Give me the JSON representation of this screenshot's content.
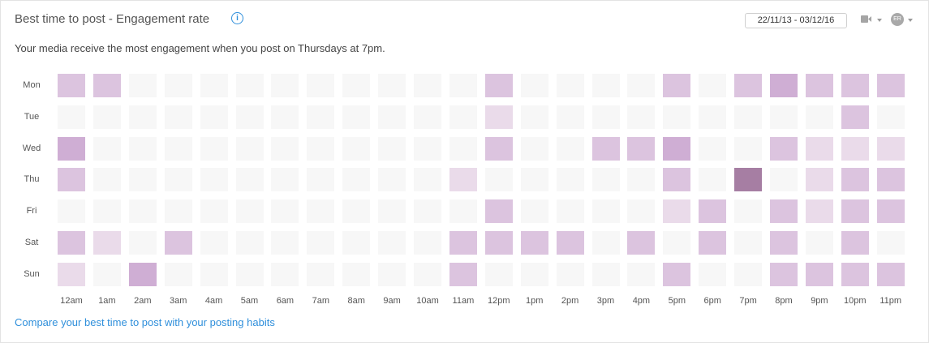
{
  "header": {
    "title": "Best time to post - Engagement rate",
    "info_icon": "info-icon",
    "date_range": "22/11/13 - 03/12/16",
    "avatar_initials": "ER"
  },
  "subtitle": "Your media receive the most engagement when you post on Thursdays at 7pm.",
  "footer_link": "Compare your best time to post with your posting habits",
  "colors": {
    "empty": "#f7f7f7",
    "accent": "#2f8fdb",
    "scale": [
      "#f7f7f7",
      "#eadbea",
      "#dcc4df",
      "#cfaed4",
      "#a67ea3"
    ]
  },
  "heatmap": {
    "days": [
      "Mon",
      "Tue",
      "Wed",
      "Thu",
      "Fri",
      "Sat",
      "Sun"
    ],
    "hours": [
      "12am",
      "1am",
      "2am",
      "3am",
      "4am",
      "5am",
      "6am",
      "7am",
      "8am",
      "9am",
      "10am",
      "11am",
      "12pm",
      "1pm",
      "2pm",
      "3pm",
      "4pm",
      "5pm",
      "6pm",
      "7pm",
      "8pm",
      "9pm",
      "10pm",
      "11pm"
    ],
    "levels": [
      [
        2,
        2,
        0,
        0,
        0,
        0,
        0,
        0,
        0,
        0,
        0,
        0,
        2,
        0,
        0,
        0,
        0,
        2,
        0,
        2,
        3,
        2,
        2,
        2
      ],
      [
        0,
        0,
        0,
        0,
        0,
        0,
        0,
        0,
        0,
        0,
        0,
        0,
        1,
        0,
        0,
        0,
        0,
        0,
        0,
        0,
        0,
        0,
        2,
        0
      ],
      [
        3,
        0,
        0,
        0,
        0,
        0,
        0,
        0,
        0,
        0,
        0,
        0,
        2,
        0,
        0,
        2,
        2,
        3,
        0,
        0,
        2,
        1,
        1,
        1
      ],
      [
        2,
        0,
        0,
        0,
        0,
        0,
        0,
        0,
        0,
        0,
        0,
        1,
        0,
        0,
        0,
        0,
        0,
        2,
        0,
        4,
        0,
        1,
        2,
        2
      ],
      [
        0,
        0,
        0,
        0,
        0,
        0,
        0,
        0,
        0,
        0,
        0,
        0,
        2,
        0,
        0,
        0,
        0,
        1,
        2,
        0,
        2,
        1,
        2,
        2
      ],
      [
        2,
        1,
        0,
        2,
        0,
        0,
        0,
        0,
        0,
        0,
        0,
        2,
        2,
        2,
        2,
        0,
        2,
        0,
        2,
        0,
        2,
        0,
        2,
        0
      ],
      [
        1,
        0,
        3,
        0,
        0,
        0,
        0,
        0,
        0,
        0,
        0,
        2,
        0,
        0,
        0,
        0,
        0,
        2,
        0,
        0,
        2,
        2,
        2,
        2
      ]
    ]
  }
}
